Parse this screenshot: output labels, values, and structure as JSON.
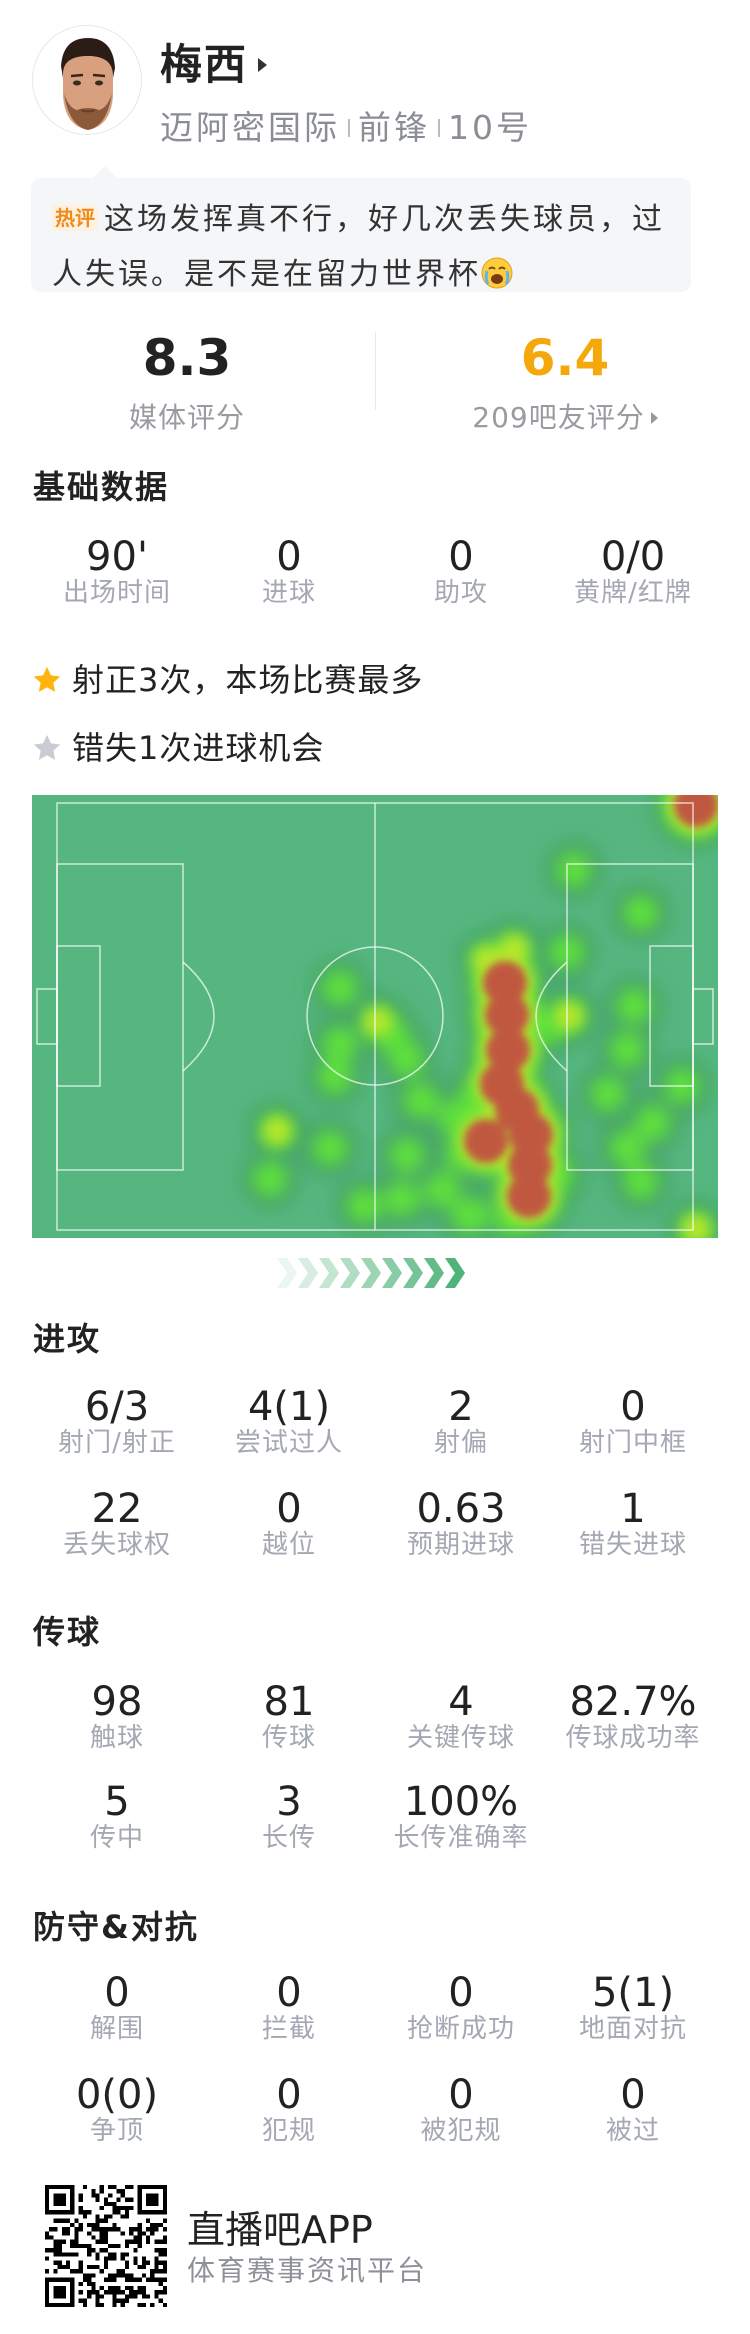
{
  "player": {
    "name": "梅西",
    "team": "迈阿密国际",
    "position": "前锋",
    "number": "10号"
  },
  "comment": {
    "badge": "热评",
    "text": "这场发挥真不行，好几次丢失球员，过人失误。是不是在留力世界杯",
    "emoji": "crying-face-icon"
  },
  "ratings": {
    "media": {
      "value": "8.3",
      "label": "媒体评分"
    },
    "fans": {
      "value": "6.4",
      "label": "209吧友评分",
      "color": "#f5a80c"
    }
  },
  "basic": {
    "title": "基础数据",
    "stats": [
      {
        "value": "90'",
        "label": "出场时间"
      },
      {
        "value": "0",
        "label": "进球"
      },
      {
        "value": "0",
        "label": "助攻"
      },
      {
        "value": "0/0",
        "label": "黄牌/红牌"
      }
    ]
  },
  "highlights": [
    {
      "text": "射正3次，本场比赛最多",
      "icon": "star-gold-icon",
      "color": "#ffb30f"
    },
    {
      "text": "错失1次进球机会",
      "icon": "star-gray-icon",
      "color": "#c9ccd3"
    }
  ],
  "heatmap": {
    "pitch_color": "#55b77f",
    "direction": "attacking-right"
  },
  "attack": {
    "title": "进攻",
    "rows": [
      [
        {
          "value": "6/3",
          "label": "射门/射正"
        },
        {
          "value": "4(1)",
          "label": "尝试过人"
        },
        {
          "value": "2",
          "label": "射偏"
        },
        {
          "value": "0",
          "label": "射门中框"
        }
      ],
      [
        {
          "value": "22",
          "label": "丢失球权"
        },
        {
          "value": "0",
          "label": "越位"
        },
        {
          "value": "0.63",
          "label": "预期进球"
        },
        {
          "value": "1",
          "label": "错失进球"
        }
      ]
    ]
  },
  "passing": {
    "title": "传球",
    "rows": [
      [
        {
          "value": "98",
          "label": "触球"
        },
        {
          "value": "81",
          "label": "传球"
        },
        {
          "value": "4",
          "label": "关键传球"
        },
        {
          "value": "82.7%",
          "label": "传球成功率"
        }
      ],
      [
        {
          "value": "5",
          "label": "传中"
        },
        {
          "value": "3",
          "label": "长传"
        },
        {
          "value": "100%",
          "label": "长传准确率"
        }
      ]
    ]
  },
  "defense": {
    "title": "防守&对抗",
    "rows": [
      [
        {
          "value": "0",
          "label": "解围"
        },
        {
          "value": "0",
          "label": "拦截"
        },
        {
          "value": "0",
          "label": "抢断成功"
        },
        {
          "value": "5(1)",
          "label": "地面对抗"
        }
      ],
      [
        {
          "value": "0(0)",
          "label": "争顶"
        },
        {
          "value": "0",
          "label": "犯规"
        },
        {
          "value": "0",
          "label": "被犯规"
        },
        {
          "value": "0",
          "label": "被过"
        }
      ]
    ]
  },
  "footer": {
    "brand": "直播吧APP",
    "slogan": "体育赛事资讯平台"
  }
}
